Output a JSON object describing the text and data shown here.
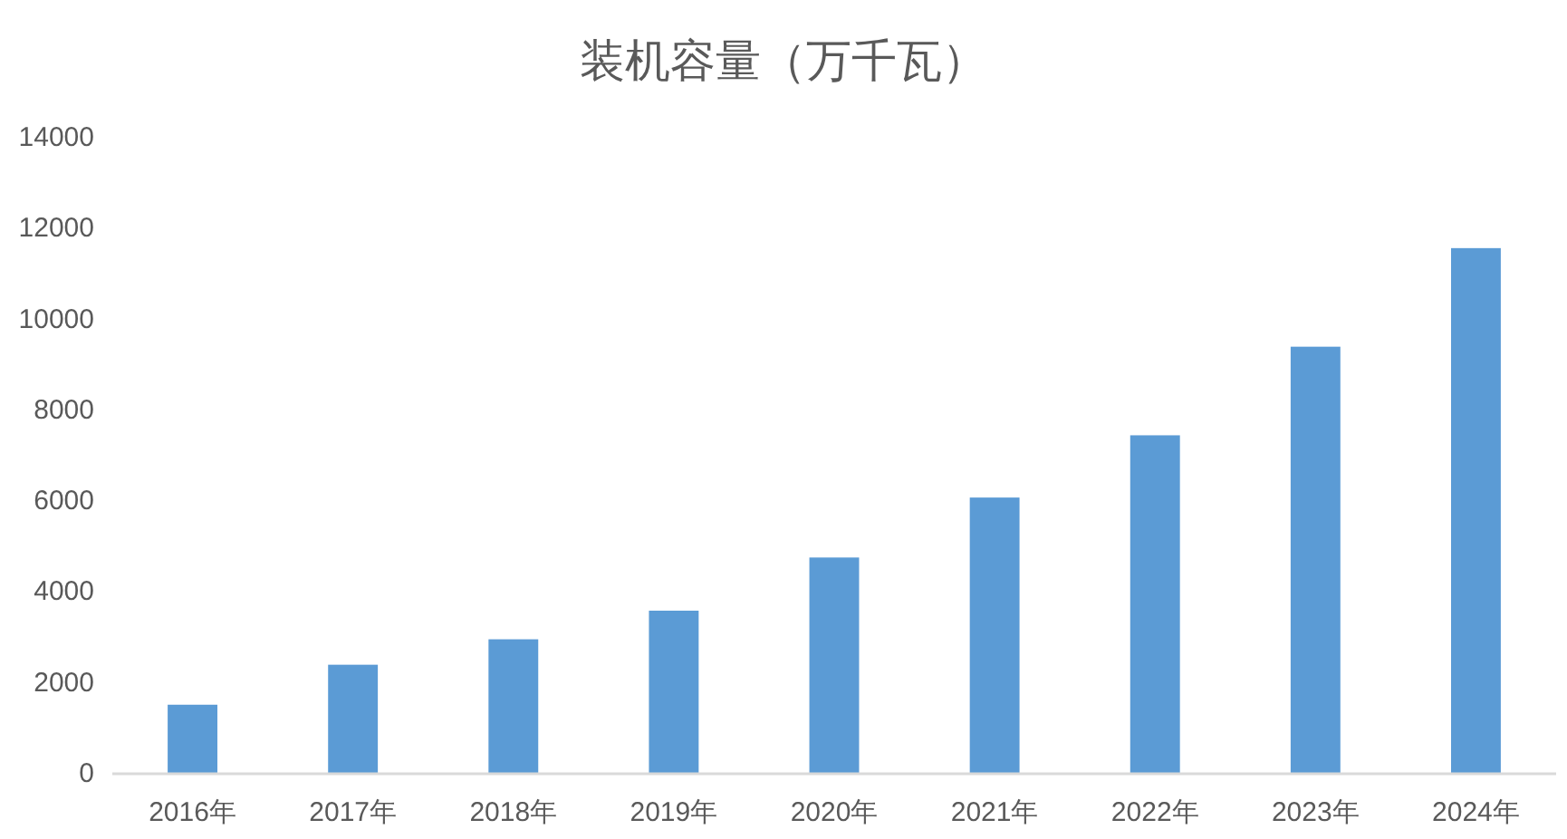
{
  "chart_data": {
    "type": "bar",
    "title": "装机容量（万千瓦）",
    "categories": [
      "2016年",
      "2017年",
      "2018年",
      "2019年",
      "2020年",
      "2021年",
      "2022年",
      "2023年",
      "2024年"
    ],
    "values": [
      1520,
      2400,
      2960,
      3590,
      4760,
      6080,
      7450,
      9400,
      11570
    ],
    "color": "#5b9bd5",
    "ylim": [
      0,
      14000
    ],
    "yticks": [
      0,
      2000,
      4000,
      6000,
      8000,
      10000,
      12000,
      14000
    ]
  }
}
